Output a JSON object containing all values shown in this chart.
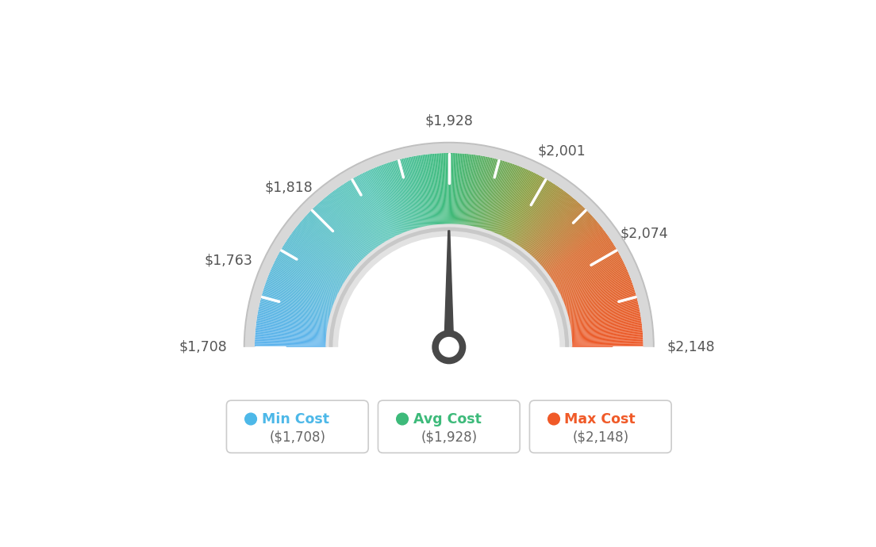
{
  "min_val": 1708,
  "avg_val": 1928,
  "max_val": 2148,
  "tick_labels": [
    "$1,708",
    "$1,763",
    "$1,818",
    "$1,928",
    "$2,001",
    "$2,074",
    "$2,148"
  ],
  "tick_values": [
    1708,
    1763,
    1818,
    1928,
    2001,
    2074,
    2148
  ],
  "legend": [
    {
      "label": "Min Cost",
      "value": "($1,708)",
      "color": "#4db8e8"
    },
    {
      "label": "Avg Cost",
      "value": "($1,928)",
      "color": "#3dba7a"
    },
    {
      "label": "Max Cost",
      "value": "($2,148)",
      "color": "#f05a28"
    }
  ],
  "bg_color": "#ffffff",
  "colors_keypoints": [
    [
      0.0,
      [
        0.36,
        0.7,
        0.93
      ]
    ],
    [
      0.35,
      [
        0.36,
        0.78,
        0.72
      ]
    ],
    [
      0.5,
      [
        0.24,
        0.73,
        0.48
      ]
    ],
    [
      0.65,
      [
        0.55,
        0.62,
        0.25
      ]
    ],
    [
      0.8,
      [
        0.85,
        0.42,
        0.18
      ]
    ],
    [
      1.0,
      [
        0.93,
        0.35,
        0.16
      ]
    ]
  ]
}
